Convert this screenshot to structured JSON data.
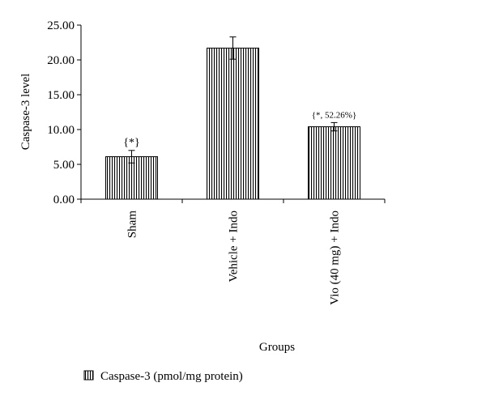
{
  "chart_data": {
    "type": "bar",
    "categories": [
      "Sham",
      "Vehicle + Indo",
      "Vio (40 mg) + Indo"
    ],
    "series": [
      {
        "name": "Caspase-3 (pmol/mg protein)",
        "values": [
          6.1,
          21.7,
          10.4
        ],
        "errors": [
          0.9,
          1.6,
          0.6
        ]
      }
    ],
    "annotations": [
      "{*}",
      "",
      "{*, 52.26%}"
    ],
    "ylabel": "Caspase-3 level",
    "xlabel": "Groups",
    "ylim": [
      0,
      25
    ],
    "yticks": [
      "0.00",
      "5.00",
      "10.00",
      "15.00",
      "20.00",
      "25.00"
    ],
    "legend_position": "bottom-left",
    "bar_fill": "vertical-stripes",
    "grid": false
  }
}
